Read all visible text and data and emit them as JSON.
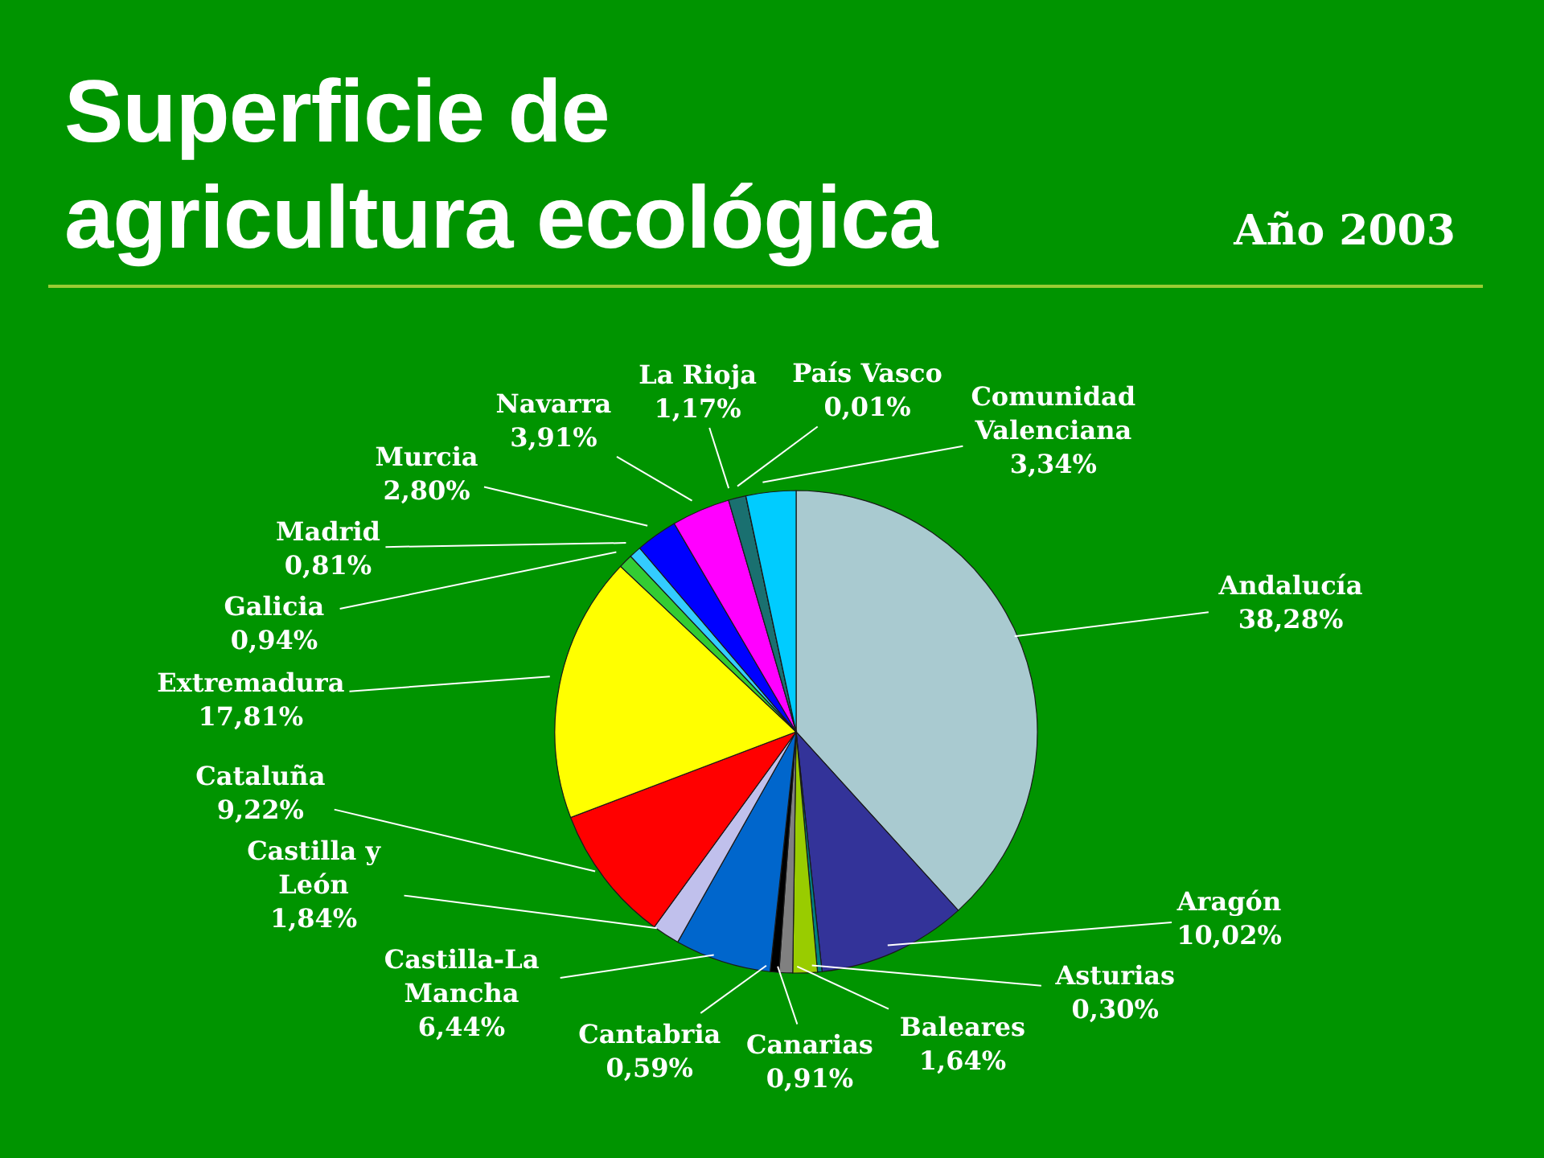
{
  "chart_data": {
    "type": "pie",
    "title": "Superficie de agricultura ecológica",
    "subtitle": "Año 2003",
    "categories": [
      "Andalucía",
      "Aragón",
      "Asturias",
      "Baleares",
      "Canarias",
      "Cantabria",
      "Castilla-La Mancha",
      "Castilla y León",
      "Cataluña",
      "Extremadura",
      "Galicia",
      "Madrid",
      "Murcia",
      "Navarra",
      "La Rioja",
      "País Vasco",
      "Comunidad Valenciana"
    ],
    "values": [
      38.28,
      10.02,
      0.3,
      1.64,
      0.91,
      0.59,
      6.44,
      1.84,
      9.22,
      17.81,
      0.94,
      0.81,
      2.8,
      3.91,
      1.17,
      0.01,
      3.34
    ],
    "value_labels": [
      "38,28%",
      "10,02%",
      "0,30%",
      "1,64%",
      "0,91%",
      "0,59%",
      "6,44%",
      "1,84%",
      "9,22%",
      "17,81%",
      "0,94%",
      "0,81%",
      "2,80%",
      "3,91%",
      "1,17%",
      "0,01%",
      "3,34%"
    ],
    "colors": [
      "#a9cad0",
      "#333399",
      "#008080",
      "#99cc00",
      "#808080",
      "#000000",
      "#0066cc",
      "#c0c0ec",
      "#ff0000",
      "#ffff00",
      "#33cc33",
      "#33ccff",
      "#0000ff",
      "#ff00ff",
      "#1a7070",
      "#00b0b0",
      "#00ccff"
    ]
  }
}
